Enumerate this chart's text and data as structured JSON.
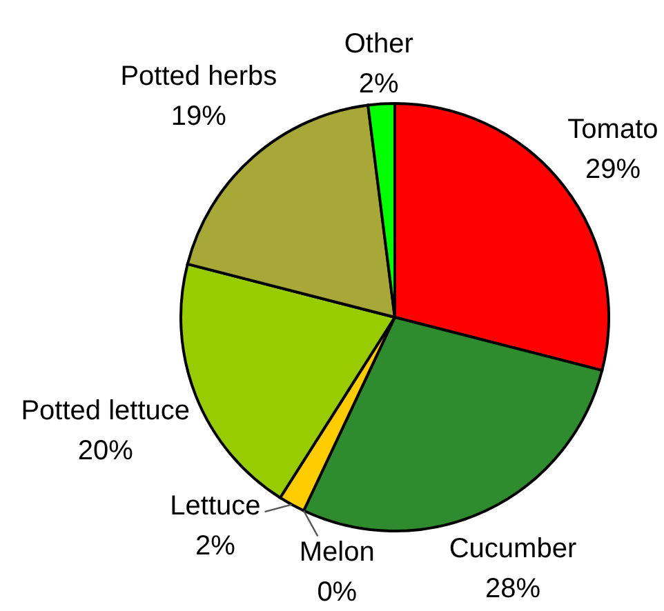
{
  "chart_data": {
    "type": "pie",
    "categories": [
      "Tomato",
      "Cucumber",
      "Melon",
      "Lettuce",
      "Potted lettuce",
      "Potted herbs",
      "Other"
    ],
    "values": [
      29,
      28,
      0,
      2,
      20,
      19,
      2
    ],
    "colors": [
      "#ff0000",
      "#2e8b2e",
      "#ff9900",
      "#ffcc00",
      "#99cc00",
      "#a8a838",
      "#00ff00"
    ],
    "value_labels": [
      "29%",
      "28%",
      "0%",
      "2%",
      "20%",
      "19%",
      "2%"
    ]
  }
}
